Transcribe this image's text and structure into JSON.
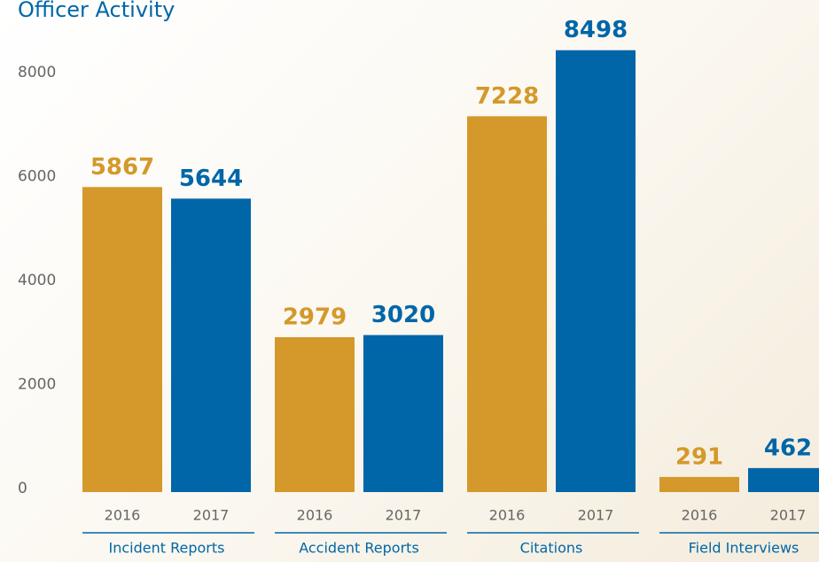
{
  "chart_data": {
    "type": "bar",
    "title": "Officer Activity",
    "categories": [
      "Incident Reports",
      "Accident Reports",
      "Citations",
      "Field Interviews"
    ],
    "series": [
      {
        "name": "2016",
        "color": "#d4992a",
        "values": [
          5867,
          2979,
          7228,
          291
        ]
      },
      {
        "name": "2017",
        "color": "#0066a8",
        "values": [
          5644,
          3020,
          8498,
          462
        ]
      }
    ],
    "ylim": [
      0,
      9000
    ],
    "yticks": [
      0,
      2000,
      4000,
      6000,
      8000
    ]
  }
}
